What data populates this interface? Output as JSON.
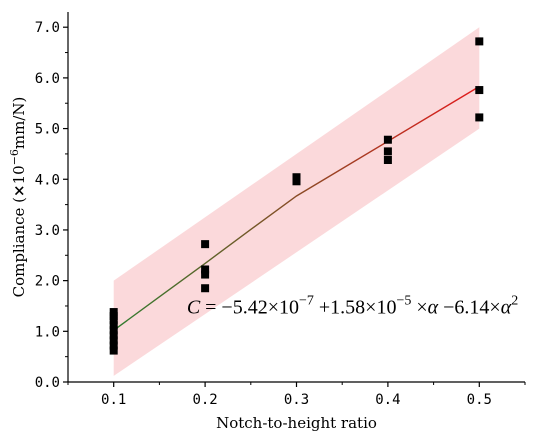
{
  "chart_data": {
    "type": "scatter",
    "title": "",
    "xlabel": "Notch-to-height ratio",
    "ylabel": {
      "prefix": "Compliance (",
      "times": "×",
      "base": "10",
      "exponent": "−6",
      "unit": "mm/N)"
    },
    "xlim": [
      0.05,
      0.55
    ],
    "ylim": [
      0.0,
      7.3
    ],
    "x_ticks": [
      0.1,
      0.2,
      0.3,
      0.4,
      0.5
    ],
    "x_tick_labels": [
      "0.1",
      "0.2",
      "0.3",
      "0.4",
      "0.5"
    ],
    "y_ticks": [
      0.0,
      1.0,
      2.0,
      3.0,
      4.0,
      5.0,
      6.0,
      7.0
    ],
    "y_tick_labels": [
      "0.0",
      "1.0",
      "2.0",
      "3.0",
      "4.0",
      "5.0",
      "6.0",
      "7.0"
    ],
    "grid": false,
    "series": [
      {
        "type": "scatter",
        "color": "#000000",
        "marker": "square",
        "points": [
          [
            0.1,
            1.38
          ],
          [
            0.1,
            1.3
          ],
          [
            0.1,
            1.22
          ],
          [
            0.1,
            1.12
          ],
          [
            0.1,
            1.02
          ],
          [
            0.1,
            0.92
          ],
          [
            0.1,
            0.82
          ],
          [
            0.1,
            0.72
          ],
          [
            0.1,
            0.62
          ],
          [
            0.2,
            2.72
          ],
          [
            0.2,
            2.22
          ],
          [
            0.2,
            2.12
          ],
          [
            0.2,
            1.85
          ],
          [
            0.3,
            4.04
          ],
          [
            0.3,
            3.96
          ],
          [
            0.4,
            4.78
          ],
          [
            0.4,
            4.55
          ],
          [
            0.4,
            4.38
          ],
          [
            0.5,
            6.72
          ],
          [
            0.5,
            5.76
          ],
          [
            0.5,
            5.22
          ]
        ]
      },
      {
        "type": "line",
        "style": "gradient",
        "color_start": "#2f7d2f",
        "color_end": "#e31a1c",
        "x": [
          0.1,
          0.15,
          0.2,
          0.25,
          0.3,
          0.35,
          0.4,
          0.45,
          0.5
        ],
        "y": [
          1.02,
          1.68,
          2.34,
          3.01,
          3.67,
          4.21,
          4.75,
          5.29,
          5.83
        ]
      },
      {
        "type": "band",
        "color": "#f9c5c7",
        "x": [
          0.1,
          0.5
        ],
        "lower": [
          0.12,
          5.0
        ],
        "upper": [
          2.0,
          7.0
        ]
      }
    ],
    "annotations": [
      {
        "anchor": [
          0.18,
          1.35
        ],
        "segments": [
          {
            "t": "C",
            "italic": true
          },
          {
            "t": " = −5.42×10"
          },
          {
            "t": "−7",
            "sup": true
          },
          {
            "t": " +1.58×10"
          },
          {
            "t": "−5",
            "sup": true
          },
          {
            "t": " ×"
          },
          {
            "t": "α",
            "italic": true
          },
          {
            "t": " −6.14×"
          },
          {
            "t": "α",
            "italic": true
          },
          {
            "t": "2",
            "sup": true
          }
        ]
      }
    ]
  }
}
